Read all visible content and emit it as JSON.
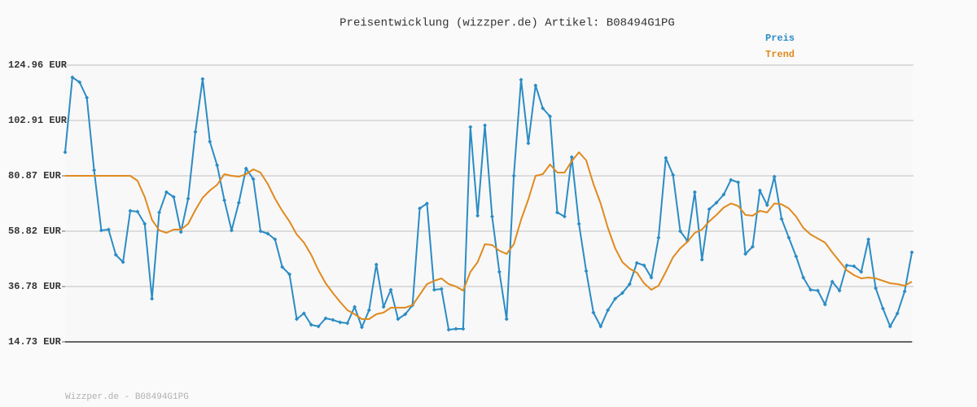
{
  "chart_data": {
    "type": "line",
    "title": "Preisentwicklung (wizzper.de) Artikel: B08494G1PG",
    "footer": "Wizzper.de - B08494G1PG",
    "categories": [
      null,
      null,
      null,
      null,
      null,
      null,
      null,
      null,
      null,
      null,
      null,
      null,
      null,
      null,
      null,
      null,
      null,
      null,
      null,
      null,
      null,
      null,
      null,
      null,
      null,
      null,
      null,
      null,
      null,
      null,
      null,
      null,
      null,
      null,
      null,
      null,
      null,
      null,
      null,
      null,
      null,
      null,
      null,
      null,
      null,
      null,
      null,
      null,
      null,
      null,
      null,
      null,
      null,
      null,
      null,
      null,
      null,
      null,
      null,
      null,
      null,
      null,
      null,
      null,
      null,
      null,
      null,
      null,
      null,
      null,
      null,
      null,
      null,
      null,
      null,
      null,
      null,
      null,
      null,
      null,
      null,
      null,
      null,
      null,
      null,
      null,
      null,
      null,
      null,
      null,
      null,
      null,
      null,
      null,
      null,
      null,
      null,
      null,
      null,
      null,
      null,
      null,
      null,
      null,
      null,
      null,
      null,
      null,
      null,
      null,
      null,
      null,
      null,
      null,
      null,
      null,
      null,
      null
    ],
    "series": [
      {
        "name": "Preis",
        "color": "#2b8cc4",
        "markers": true,
        "values": [
          90.27,
          120.1,
          118.15,
          111.99,
          83.14,
          59.15,
          59.47,
          49.42,
          46.5,
          66.93,
          66.6,
          61.74,
          31.91,
          66.28,
          74.38,
          72.44,
          58.5,
          71.79,
          98.38,
          119.45,
          94.49,
          85.08,
          71.14,
          59.15,
          70.17,
          83.79,
          79.57,
          58.82,
          57.85,
          55.58,
          44.56,
          41.64,
          23.81,
          26.08,
          21.54,
          20.89,
          24.13,
          23.48,
          22.51,
          22.19,
          28.67,
          20.57,
          27.37,
          45.53,
          28.67,
          35.48,
          23.81,
          25.75,
          29.32,
          67.9,
          69.85,
          35.48,
          35.8,
          19.59,
          19.92,
          19.92,
          100.32,
          64.98,
          100.97,
          64.66,
          42.61,
          23.81,
          80.87,
          119.13,
          93.84,
          116.86,
          107.78,
          104.54,
          66.28,
          64.66,
          88.33,
          61.74,
          42.94,
          26.4,
          20.89,
          27.37,
          31.91,
          34.18,
          37.75,
          46.18,
          45.21,
          40.34,
          56.23,
          88.0,
          81.19,
          58.82,
          54.93,
          74.38,
          47.48,
          67.58,
          70.17,
          73.41,
          79.25,
          78.28,
          49.74,
          52.66,
          75.03,
          69.2,
          80.54,
          63.69,
          56.23,
          48.77,
          40.34,
          35.48,
          35.16,
          29.64,
          38.72,
          35.16,
          45.21,
          44.88,
          42.61,
          55.58,
          36.13,
          28.02,
          20.89,
          26.08,
          34.83,
          50.39
        ]
      },
      {
        "name": "Trend",
        "color": "#e08a1e",
        "markers": false,
        "values": [
          80.87,
          80.87,
          80.87,
          80.87,
          80.87,
          80.87,
          80.87,
          80.87,
          80.87,
          80.87,
          78.92,
          72.44,
          63.36,
          59.15,
          58.17,
          59.47,
          59.47,
          61.74,
          67.25,
          72.12,
          75.03,
          77.3,
          81.52,
          80.87,
          80.54,
          81.52,
          83.46,
          82.17,
          77.63,
          71.79,
          66.93,
          62.71,
          57.53,
          54.28,
          49.42,
          43.26,
          38.07,
          34.18,
          30.62,
          27.37,
          25.75,
          23.81,
          23.81,
          25.75,
          26.4,
          28.35,
          28.35,
          28.35,
          29.32,
          33.53,
          37.75,
          39.05,
          40.02,
          37.75,
          36.78,
          35.16,
          42.61,
          46.5,
          53.64,
          53.31,
          51.04,
          49.74,
          53.64,
          63.36,
          71.47,
          80.87,
          81.52,
          85.41,
          82.17,
          82.17,
          86.7,
          90.27,
          87.03,
          77.63,
          69.85,
          60.12,
          52.01,
          46.5,
          43.91,
          42.29,
          38.07,
          35.48,
          37.1,
          42.61,
          48.45,
          52.01,
          54.61,
          58.17,
          59.47,
          62.71,
          65.31,
          68.22,
          69.85,
          68.87,
          65.31,
          64.98,
          66.93,
          66.28,
          69.85,
          69.52,
          67.9,
          64.66,
          60.12,
          57.53,
          55.9,
          54.28,
          50.39,
          46.83,
          43.26,
          41.32,
          40.02,
          40.34,
          40.02,
          39.05,
          38.07,
          37.75,
          37.1,
          38.72
        ]
      }
    ],
    "ylim": [
      14.73,
      124.96
    ],
    "yticks": [
      {
        "value": 14.73,
        "label": "14.73 EUR"
      },
      {
        "value": 36.78,
        "label": "36.78 EUR"
      },
      {
        "value": 58.82,
        "label": "58.82 EUR"
      },
      {
        "value": 80.87,
        "label": "80.87 EUR"
      },
      {
        "value": 102.91,
        "label": "102.91 EUR"
      },
      {
        "value": 124.96,
        "label": "124.96 EUR"
      }
    ],
    "grid": true
  }
}
